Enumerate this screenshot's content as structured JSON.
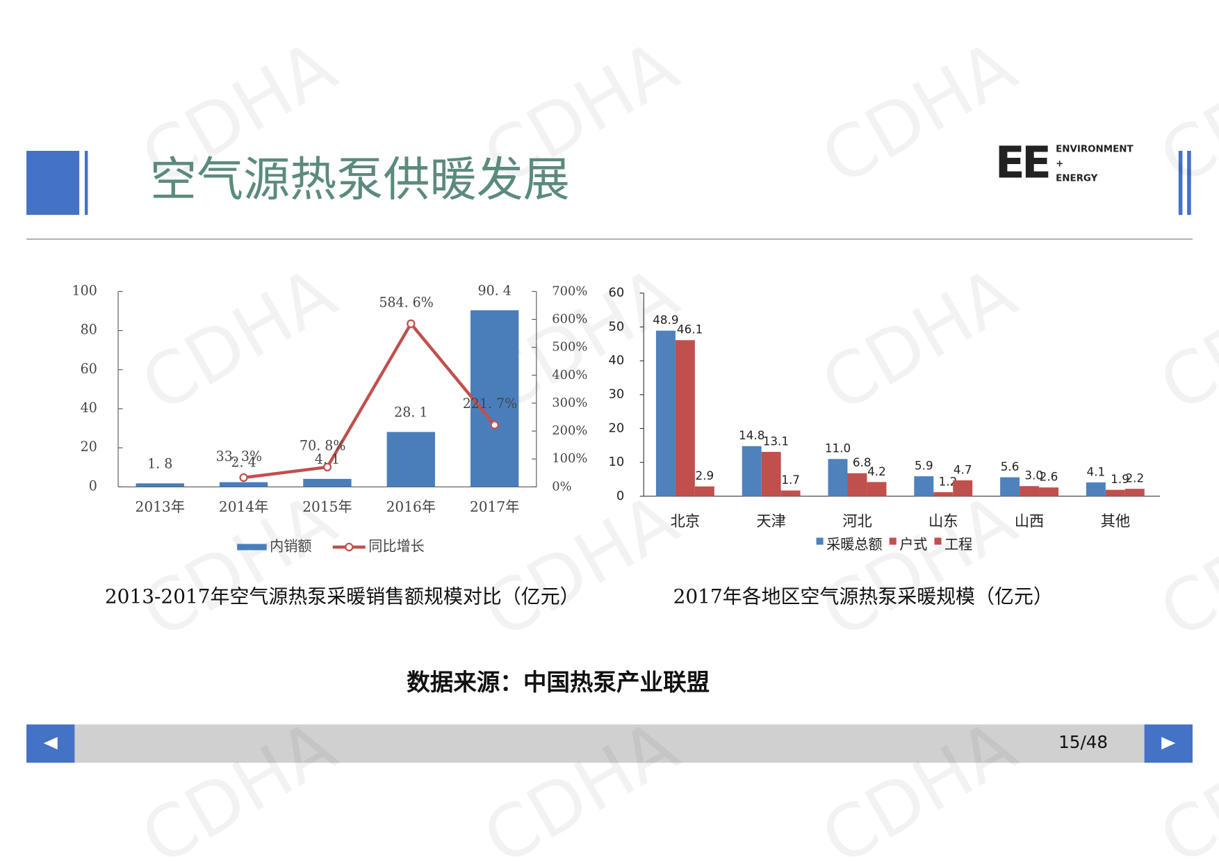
{
  "watermark": "CDHA",
  "header": {
    "title": "空气源热泵供暖发展",
    "logo": {
      "mark": "EE",
      "lines": [
        "ENVIRONMENT",
        "+",
        "ENERGY"
      ]
    }
  },
  "chart_data": [
    {
      "type": "bar",
      "title": "2013-2017年空气源热泵采暖销售额规模对比（亿元）",
      "categories": [
        "2013年",
        "2014年",
        "2015年",
        "2016年",
        "2017年"
      ],
      "series": [
        {
          "name": "内销额",
          "color": "#4a7ebb",
          "values": [
            1.8,
            2.4,
            4.1,
            28.1,
            90.4
          ],
          "value_labels": [
            "1. 8",
            "2. 4",
            "4. 1",
            "28. 1",
            "90. 4"
          ]
        },
        {
          "name": "同比增长",
          "type": "line",
          "axis": "y2",
          "color": "#c0504d",
          "values": [
            null,
            33.3,
            70.8,
            584.6,
            221.7
          ],
          "value_labels": [
            null,
            "33. 3%",
            "70. 8%",
            "584. 6%",
            "221. 7%"
          ]
        }
      ],
      "ylim": [
        0,
        100
      ],
      "yticks": [
        0,
        20,
        40,
        60,
        80,
        100
      ],
      "y2lim": [
        0,
        700
      ],
      "y2ticks": [
        {
          "value": 0,
          "label": "0%"
        },
        {
          "value": 100,
          "label": "100%"
        },
        {
          "value": 200,
          "label": "200%"
        },
        {
          "value": 300,
          "label": "300%"
        },
        {
          "value": 400,
          "label": "400%"
        },
        {
          "value": 500,
          "label": "500%"
        },
        {
          "value": 600,
          "label": "600%"
        },
        {
          "value": 700,
          "label": "700%"
        }
      ],
      "grid": false,
      "legend": "bottom"
    },
    {
      "type": "bar",
      "title": "2017年各地区空气源热泵采暖规模（亿元）",
      "categories": [
        "北京",
        "天津",
        "河北",
        "山东",
        "山西",
        "其他"
      ],
      "series": [
        {
          "name": "采暖总额",
          "color": "#4f81bd",
          "values": [
            48.9,
            14.8,
            11.0,
            5.9,
            5.6,
            4.1
          ],
          "value_labels": [
            "48.9",
            "14.8",
            "11.0",
            "5.9",
            "5.6",
            "4.1"
          ]
        },
        {
          "name": "户式",
          "color": "#c0504d",
          "values": [
            46.1,
            13.1,
            6.8,
            1.2,
            3.0,
            1.9
          ],
          "value_labels": [
            "46.1",
            "13.1",
            "6.8",
            "1.2",
            "3.0",
            "1.9"
          ]
        },
        {
          "name": "工程",
          "color": "#c0504d",
          "values": [
            2.9,
            1.7,
            4.2,
            4.7,
            2.6,
            2.2
          ],
          "value_labels": [
            "2.9",
            "1.7",
            "4.2",
            "4.7",
            "2.6",
            "2.2"
          ]
        }
      ],
      "ylim": [
        0,
        60
      ],
      "yticks": [
        0,
        10,
        20,
        30,
        40,
        50,
        60
      ],
      "grid": false,
      "legend": "bottom"
    }
  ],
  "source": "数据来源：中国热泵产业联盟",
  "pager": "15/48"
}
